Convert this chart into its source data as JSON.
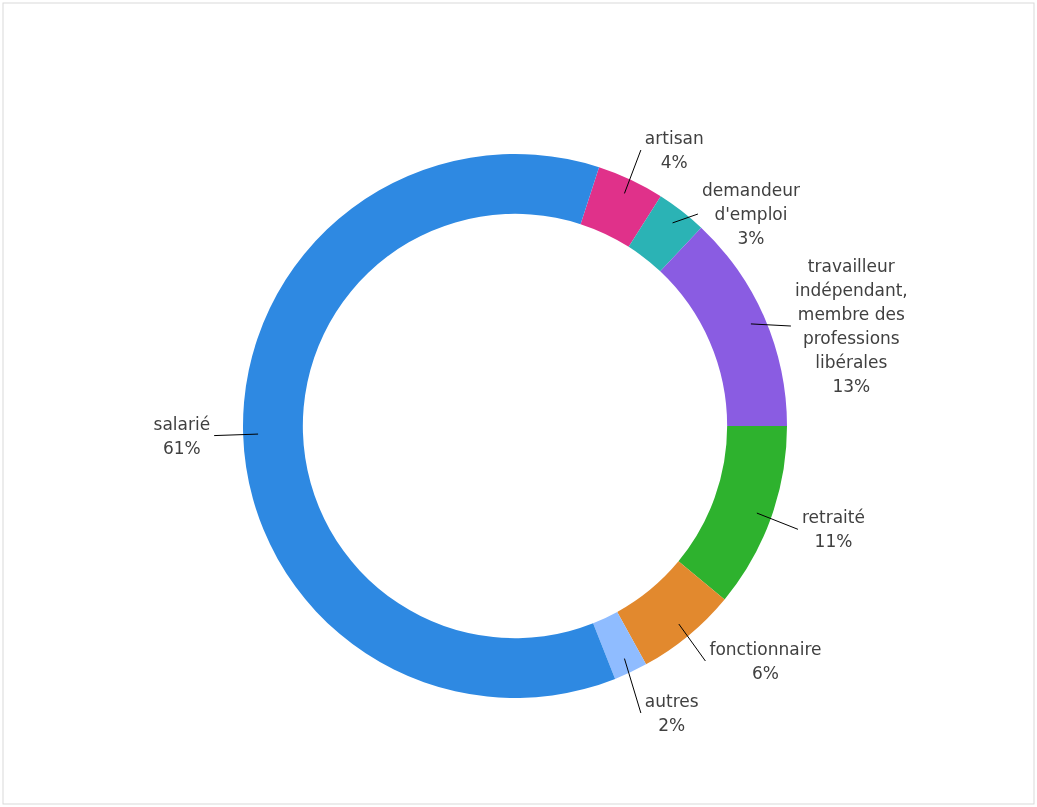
{
  "chart_data": {
    "type": "donut",
    "categories": [
      "artisan",
      "demandeur d'emploi",
      "travailleur indépendant, membre des professions libérales",
      "retraité",
      "fonctionnaire",
      "autres",
      "salarié"
    ],
    "values": [
      4,
      3,
      13,
      11,
      6,
      2,
      61
    ],
    "colors": [
      "#e0318a",
      "#2bb3b5",
      "#8a5ce2",
      "#2eb22e",
      "#e2892e",
      "#8fbcff",
      "#2e89e2"
    ],
    "value_labels": [
      "4%",
      "3%",
      "13%",
      "11%",
      "6%",
      "2%",
      "61%"
    ]
  }
}
